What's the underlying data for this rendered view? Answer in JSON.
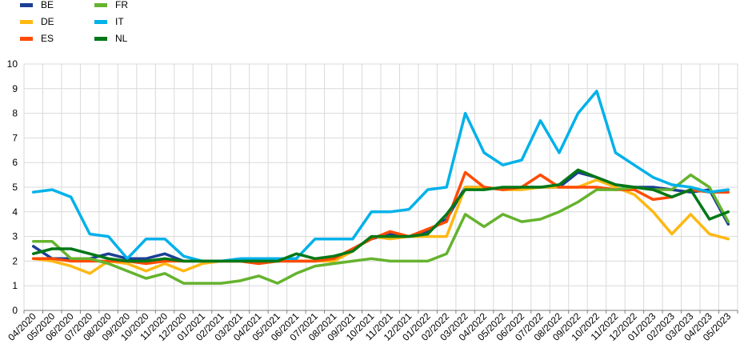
{
  "chart_data": {
    "type": "line",
    "title": "",
    "xlabel": "",
    "ylabel": "",
    "ylim": [
      0,
      10
    ],
    "yticks": [
      0,
      1,
      2,
      3,
      4,
      5,
      6,
      7,
      8,
      9,
      10
    ],
    "grid": true,
    "legend_position": "top-left",
    "x": [
      "04/2020",
      "05/2020",
      "06/2020",
      "07/2020",
      "08/2020",
      "09/2020",
      "10/2020",
      "11/2020",
      "12/2020",
      "01/2021",
      "02/2021",
      "03/2021",
      "04/2021",
      "05/2021",
      "06/2021",
      "07/2021",
      "08/2021",
      "09/2021",
      "10/2021",
      "11/2021",
      "12/2021",
      "01/2022",
      "02/2022",
      "03/2022",
      "04/2022",
      "05/2022",
      "06/2022",
      "07/2022",
      "08/2022",
      "09/2022",
      "10/2022",
      "11/2022",
      "12/2022",
      "01/2023",
      "02/2023",
      "03/2023",
      "04/2023",
      "05/2023"
    ],
    "series": [
      {
        "name": "BE",
        "color": "#1c3f94",
        "values": [
          2.6,
          2.1,
          2.1,
          2.1,
          2.3,
          2.1,
          2.1,
          2.3,
          2.0,
          2.0,
          2.0,
          2.0,
          2.0,
          2.0,
          2.0,
          2.0,
          2.1,
          2.5,
          2.9,
          3.1,
          3.0,
          3.2,
          3.7,
          5.0,
          5.0,
          4.9,
          5.0,
          5.0,
          5.0,
          5.6,
          5.4,
          5.1,
          5.0,
          5.0,
          4.9,
          4.8,
          4.9,
          3.5
        ]
      },
      {
        "name": "DE",
        "color": "#fdb813",
        "values": [
          2.1,
          2.0,
          1.8,
          1.5,
          2.0,
          1.9,
          1.6,
          1.9,
          1.6,
          1.9,
          2.0,
          2.0,
          2.0,
          2.0,
          2.0,
          2.0,
          2.0,
          2.4,
          3.0,
          2.9,
          3.0,
          3.0,
          3.0,
          5.0,
          5.0,
          4.9,
          4.9,
          5.0,
          5.0,
          5.0,
          5.3,
          5.0,
          4.7,
          4.0,
          3.1,
          3.9,
          3.1,
          2.9
        ]
      },
      {
        "name": "ES",
        "color": "#ff4b00",
        "values": [
          2.1,
          2.1,
          2.0,
          2.0,
          2.0,
          2.0,
          1.9,
          2.0,
          2.0,
          2.0,
          2.0,
          2.0,
          1.9,
          2.0,
          2.0,
          2.0,
          2.1,
          2.5,
          2.9,
          3.2,
          3.0,
          3.3,
          3.6,
          5.6,
          5.0,
          4.9,
          5.0,
          5.5,
          5.0,
          5.0,
          5.0,
          4.9,
          4.9,
          4.5,
          4.6,
          4.9,
          4.8,
          4.8
        ]
      },
      {
        "name": "FR",
        "color": "#65b32e",
        "values": [
          2.8,
          2.8,
          2.1,
          2.1,
          1.9,
          1.6,
          1.3,
          1.5,
          1.1,
          1.1,
          1.1,
          1.2,
          1.4,
          1.1,
          1.5,
          1.8,
          1.9,
          2.0,
          2.1,
          2.0,
          2.0,
          2.0,
          2.3,
          3.9,
          3.4,
          3.9,
          3.6,
          3.7,
          4.0,
          4.4,
          4.9,
          4.9,
          5.0,
          4.9,
          4.9,
          5.5,
          5.0,
          3.6
        ]
      },
      {
        "name": "IT",
        "color": "#00b1ea",
        "values": [
          4.8,
          4.9,
          4.6,
          3.1,
          3.0,
          2.1,
          2.9,
          2.9,
          2.2,
          2.0,
          2.0,
          2.1,
          2.1,
          2.1,
          2.1,
          2.9,
          2.9,
          2.9,
          4.0,
          4.0,
          4.1,
          4.9,
          5.0,
          8.0,
          6.4,
          5.9,
          6.1,
          7.7,
          6.4,
          8.0,
          8.9,
          6.4,
          5.9,
          5.4,
          5.1,
          5.0,
          4.8,
          4.9
        ]
      },
      {
        "name": "NL",
        "color": "#007816",
        "values": [
          2.3,
          2.5,
          2.5,
          2.3,
          2.1,
          2.0,
          2.0,
          2.1,
          2.0,
          2.0,
          2.0,
          2.0,
          2.0,
          2.0,
          2.3,
          2.1,
          2.2,
          2.4,
          3.0,
          3.0,
          3.0,
          3.1,
          3.9,
          4.9,
          4.9,
          5.0,
          5.0,
          5.0,
          5.1,
          5.7,
          5.4,
          5.1,
          5.0,
          4.9,
          4.6,
          4.9,
          3.7,
          4.0
        ]
      }
    ]
  }
}
